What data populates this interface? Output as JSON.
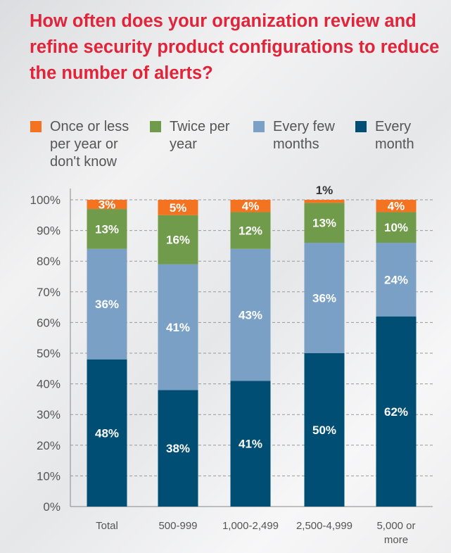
{
  "chart_data": {
    "type": "bar",
    "stacked": true,
    "title": "How often does your organization review and refine security product configurations to reduce the number of alerts?",
    "categories": [
      "Total",
      "500-999",
      "1,000-2,499",
      "2,500-4,999",
      "5,000 or more"
    ],
    "series": [
      {
        "name": "Every month",
        "color": "#004e74",
        "values": [
          48,
          38,
          41,
          50,
          62
        ]
      },
      {
        "name": "Every few months",
        "color": "#7aa1c5",
        "values": [
          36,
          41,
          43,
          36,
          24
        ]
      },
      {
        "name": "Twice per year",
        "color": "#6f9b4a",
        "values": [
          13,
          16,
          12,
          13,
          10
        ]
      },
      {
        "name": "Once or less per year or don't know",
        "color": "#f47321",
        "values": [
          3,
          5,
          4,
          1,
          4
        ]
      }
    ],
    "yticks": [
      "0%",
      "10%",
      "20%",
      "30%",
      "40%",
      "50%",
      "60%",
      "70%",
      "80%",
      "90%",
      "100%"
    ],
    "ylim": [
      0,
      100
    ],
    "grid": true,
    "legend": "top"
  }
}
